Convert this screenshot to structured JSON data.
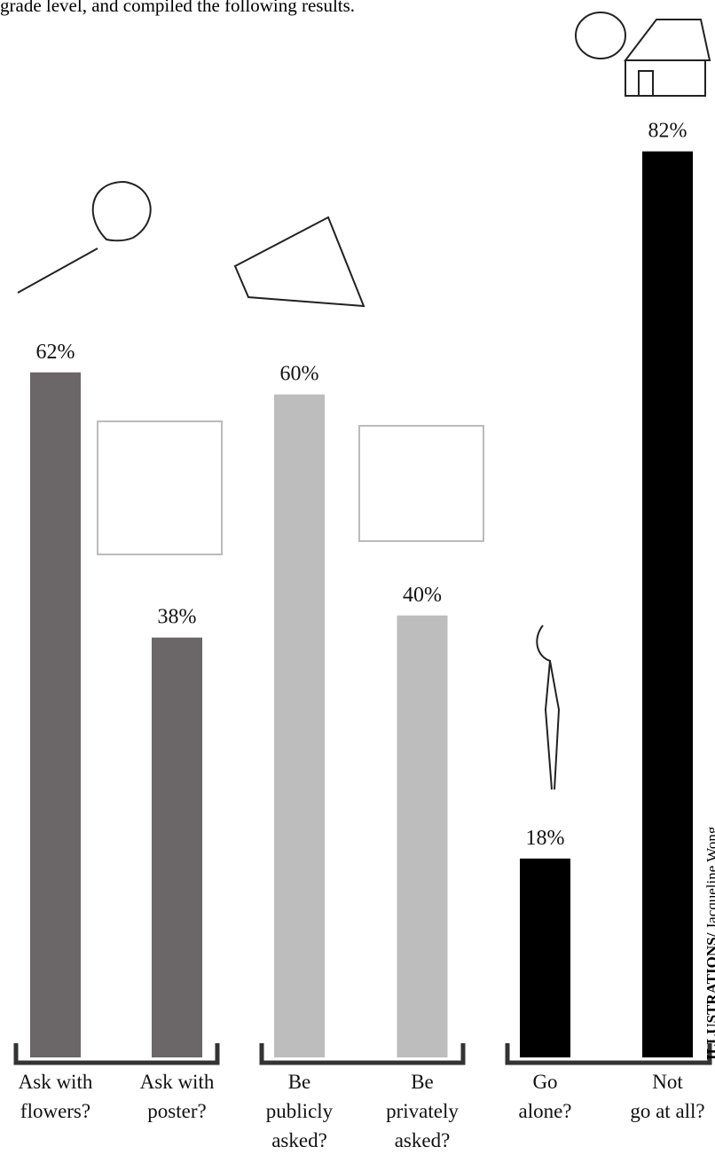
{
  "intro": "grade level, and compiled the following results.",
  "credit": {
    "label": "ILLUSTRATIONS/",
    "name": "Jacqueline Wong"
  },
  "chart_data": {
    "type": "bar",
    "categories": [
      "Ask with\nflowers?",
      "Ask with\nposter?",
      "Be\npublicly\nasked?",
      "Be\nprivately\nasked?",
      "Go\nalone?",
      "Not\ngo at all?"
    ],
    "values": [
      62,
      38,
      60,
      40,
      18,
      82
    ],
    "value_labels": [
      "62%",
      "38%",
      "60%",
      "40%",
      "18%",
      "82%"
    ],
    "colors": [
      "#6b6668",
      "#6b6668",
      "#bdbdbd",
      "#bdbdbd",
      "#000000",
      "#000000"
    ],
    "ylim": [
      0,
      90
    ]
  }
}
